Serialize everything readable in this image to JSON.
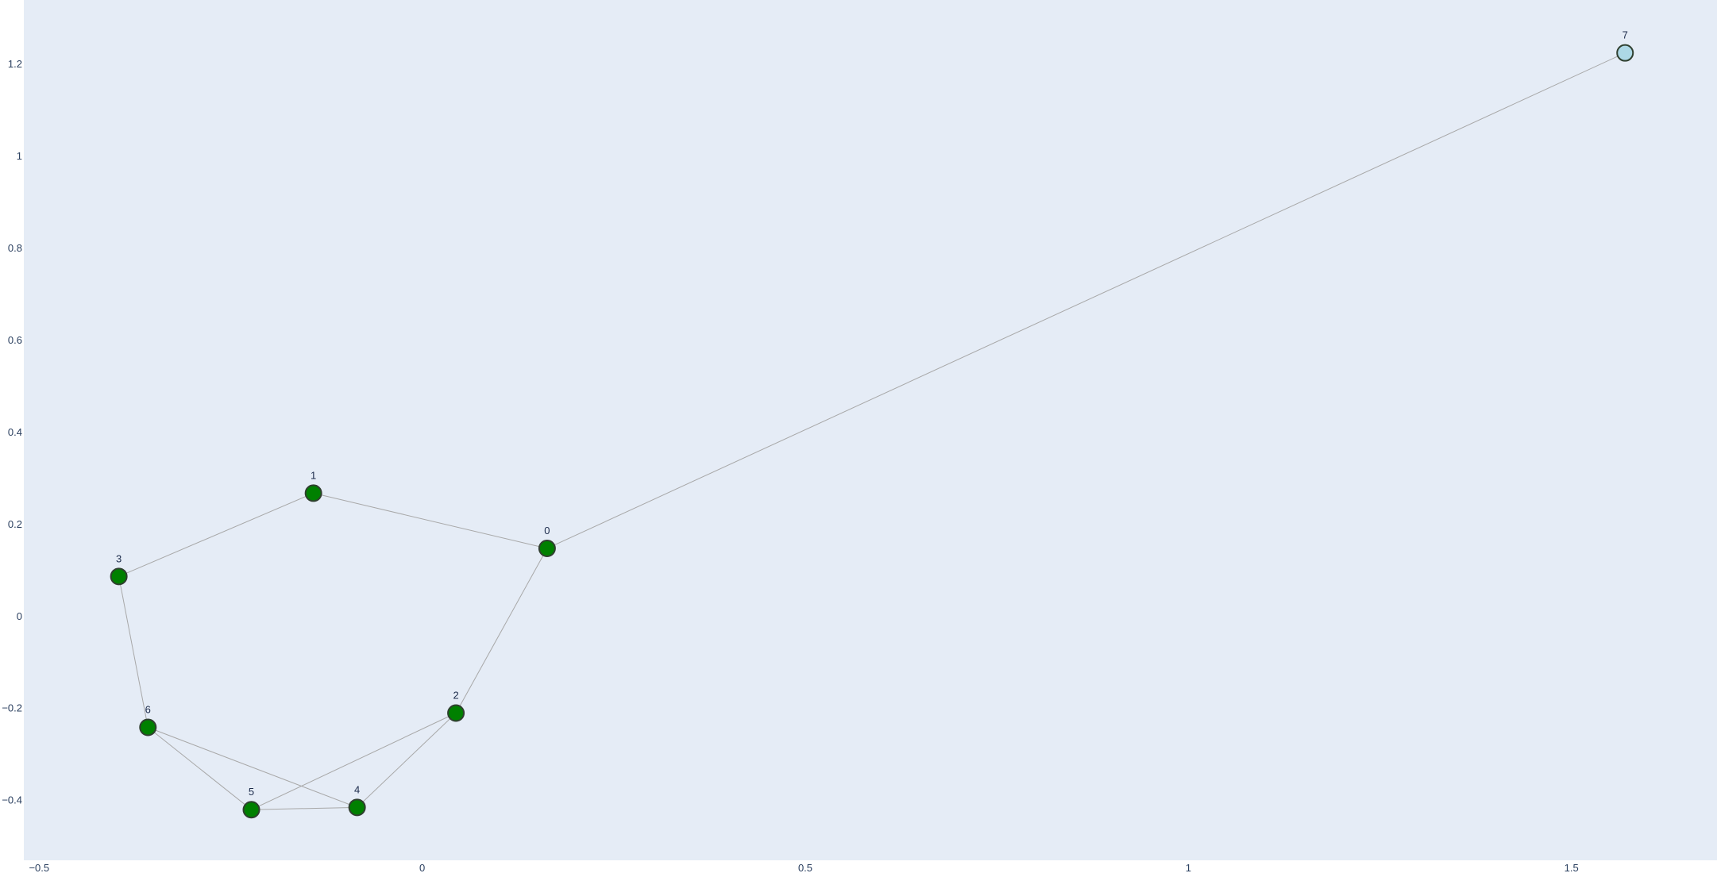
{
  "chart_data": {
    "type": "scatter",
    "title": "",
    "xlabel": "",
    "ylabel": "",
    "xlim": [
      -0.52,
      1.69
    ],
    "ylim": [
      -0.53,
      1.34
    ],
    "x_ticks": [
      {
        "value": -0.5,
        "label": "−0.5"
      },
      {
        "value": 0,
        "label": "0"
      },
      {
        "value": 0.5,
        "label": "0.5"
      },
      {
        "value": 1,
        "label": "1"
      },
      {
        "value": 1.5,
        "label": "1.5"
      }
    ],
    "y_ticks": [
      {
        "value": -0.4,
        "label": "−0.4"
      },
      {
        "value": -0.2,
        "label": "−0.2"
      },
      {
        "value": 0,
        "label": "0"
      },
      {
        "value": 0.2,
        "label": "0.2"
      },
      {
        "value": 0.4,
        "label": "0.4"
      },
      {
        "value": 0.6,
        "label": "0.6"
      },
      {
        "value": 0.8,
        "label": "0.8"
      },
      {
        "value": 1,
        "label": "1"
      },
      {
        "value": 1.2,
        "label": "1.2"
      }
    ],
    "grid": false,
    "background_color": "#e5ecf6",
    "edge_color": "#a8a8a8",
    "nodes": [
      {
        "id": "0",
        "label": "0",
        "x": 0.163,
        "y": 0.148,
        "color": "#008000"
      },
      {
        "id": "1",
        "label": "1",
        "x": -0.142,
        "y": 0.268,
        "color": "#008000"
      },
      {
        "id": "2",
        "label": "2",
        "x": 0.044,
        "y": -0.21,
        "color": "#008000"
      },
      {
        "id": "3",
        "label": "3",
        "x": -0.396,
        "y": 0.087,
        "color": "#008000"
      },
      {
        "id": "4",
        "label": "4",
        "x": -0.085,
        "y": -0.415,
        "color": "#008000"
      },
      {
        "id": "5",
        "label": "5",
        "x": -0.223,
        "y": -0.42,
        "color": "#008000"
      },
      {
        "id": "6",
        "label": "6",
        "x": -0.358,
        "y": -0.241,
        "color": "#008000"
      },
      {
        "id": "7",
        "label": "7",
        "x": 1.57,
        "y": 1.225,
        "color": "#add8e6"
      }
    ],
    "edges": [
      [
        "0",
        "1"
      ],
      [
        "0",
        "2"
      ],
      [
        "0",
        "7"
      ],
      [
        "1",
        "3"
      ],
      [
        "3",
        "6"
      ],
      [
        "6",
        "5"
      ],
      [
        "6",
        "4"
      ],
      [
        "5",
        "4"
      ],
      [
        "5",
        "2"
      ],
      [
        "4",
        "2"
      ]
    ]
  }
}
